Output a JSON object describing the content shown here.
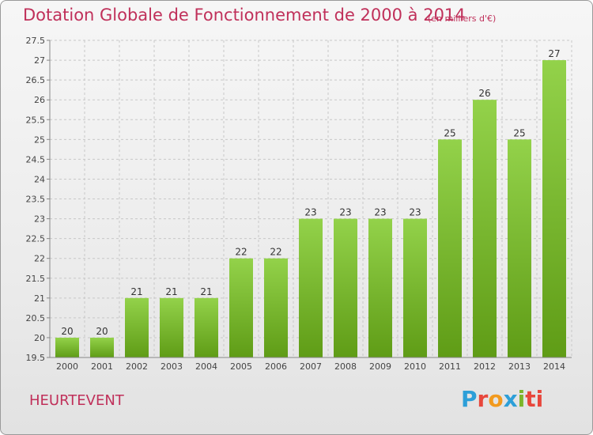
{
  "header": {
    "title": "Dotation Globale de Fonctionnement de 2000 à 2014",
    "unit": "(en milliers d'€)"
  },
  "footer": {
    "town": "HEURTEVENT",
    "brand_letters": [
      "P",
      "r",
      "o",
      "x",
      "i",
      "ti"
    ]
  },
  "colors": {
    "title": "#c0305a",
    "bar_top": "#93d24a",
    "bar_bottom": "#5f9c16",
    "grid": "#c8c8c8",
    "axis": "#888888"
  },
  "chart_data": {
    "type": "bar",
    "categories": [
      "2000",
      "2001",
      "2002",
      "2003",
      "2004",
      "2005",
      "2006",
      "2007",
      "2008",
      "2009",
      "2010",
      "2011",
      "2012",
      "2013",
      "2014"
    ],
    "values": [
      20,
      20,
      21,
      21,
      21,
      22,
      22,
      23,
      23,
      23,
      23,
      25,
      26,
      25,
      27
    ],
    "data_labels": [
      "20",
      "20",
      "21",
      "21",
      "21",
      "22",
      "22",
      "23",
      "23",
      "23",
      "23",
      "25",
      "26",
      "25",
      "27"
    ],
    "title": "Dotation Globale de Fonctionnement de 2000 à 2014",
    "ylim": [
      19.5,
      27.5
    ],
    "yticks": [
      "19.5",
      "20",
      "20.5",
      "21",
      "21.5",
      "22",
      "22.5",
      "23",
      "23.5",
      "24",
      "24.5",
      "25",
      "25.5",
      "26",
      "26.5",
      "27",
      "27.5"
    ],
    "grid": true,
    "legend": "none"
  }
}
